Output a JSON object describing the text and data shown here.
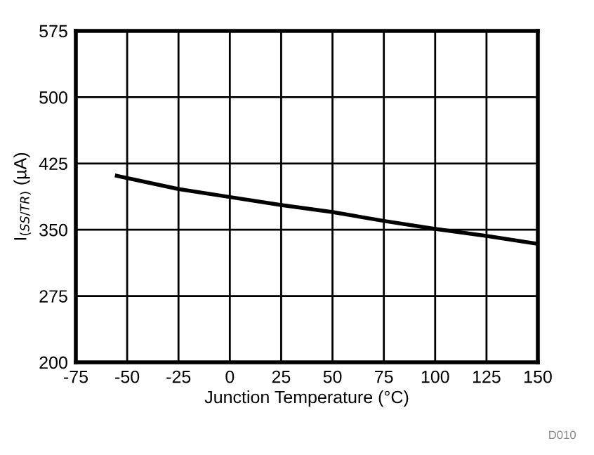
{
  "chart_data": {
    "type": "line",
    "xlabel": "Junction Temperature (°C)",
    "ylabel": "I$_{(SS/TR)}$ (µA)",
    "x": [
      -55,
      -25,
      0,
      25,
      50,
      75,
      100,
      125,
      150
    ],
    "series": [
      {
        "color": "#000000",
        "values": [
          411,
          396,
          387,
          378,
          370,
          360,
          351,
          343,
          334
        ]
      }
    ],
    "xlim": [
      -75,
      150
    ],
    "xticks": [
      -75,
      -50,
      -25,
      0,
      25,
      50,
      75,
      100,
      125,
      150
    ],
    "ylim": [
      200,
      575
    ],
    "yticks": [
      200,
      275,
      350,
      425,
      500,
      575
    ],
    "grid": true,
    "marker": "none",
    "line_style": "solid",
    "annotations": [
      "D010"
    ]
  }
}
